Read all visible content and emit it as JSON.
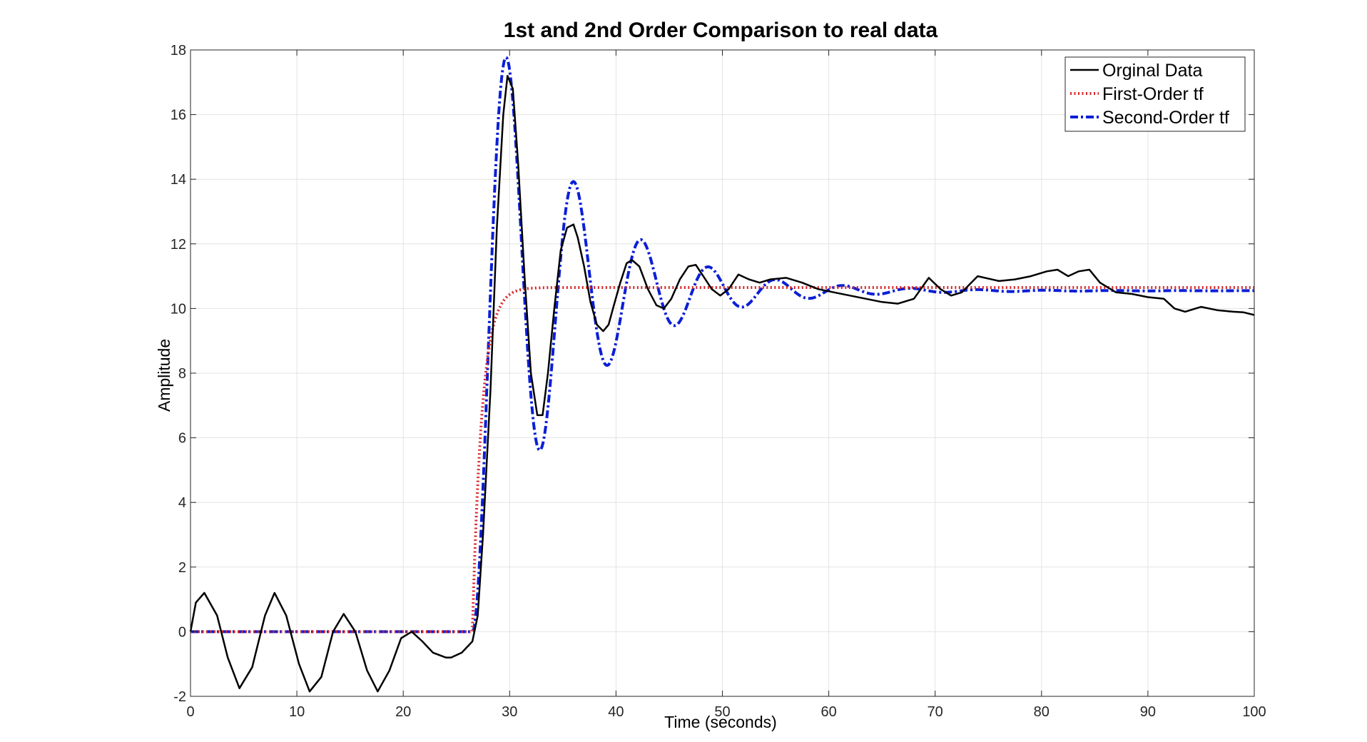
{
  "chart_data": {
    "type": "line",
    "title": "1st and 2nd Order Comparison to real data",
    "xlabel": "Time (seconds)",
    "ylabel": "Amplitude",
    "xlim": [
      0,
      100
    ],
    "ylim": [
      -2,
      18
    ],
    "xticks": [
      0,
      10,
      20,
      30,
      40,
      50,
      60,
      70,
      80,
      90,
      100
    ],
    "yticks": [
      -2,
      0,
      2,
      4,
      6,
      8,
      10,
      12,
      14,
      16,
      18
    ],
    "grid": true,
    "legend_position": "top-right",
    "series": [
      {
        "name": "Orginal Data",
        "color": "#000000",
        "style": "solid",
        "x": [
          0,
          0.5,
          1.3,
          2.5,
          3.5,
          4.6,
          5.8,
          7.0,
          7.9,
          9.0,
          10.2,
          11.2,
          12.3,
          13.4,
          14.4,
          15.5,
          16.6,
          17.6,
          18.7,
          19.8,
          20.8,
          21.8,
          22.8,
          24.0,
          24.5,
          25.5,
          26.5,
          27.0,
          27.5,
          28.2,
          28.8,
          29.4,
          29.8,
          30.3,
          30.8,
          31.4,
          32.0,
          32.6,
          33.1,
          33.6,
          34.2,
          34.8,
          35.4,
          36.0,
          36.4,
          37.0,
          37.6,
          38.2,
          38.8,
          39.3,
          39.8,
          40.4,
          41.0,
          41.5,
          42.2,
          43.0,
          43.8,
          44.5,
          45.2,
          46.0,
          46.8,
          47.5,
          48.2,
          49.0,
          49.8,
          50.6,
          51.5,
          52.5,
          53.5,
          54.5,
          56.0,
          57.5,
          59.0,
          60.5,
          62.0,
          63.5,
          65.0,
          66.5,
          68.0,
          69.4,
          70.5,
          71.5,
          72.5,
          74.0,
          76.0,
          77.5,
          79.0,
          80.5,
          81.5,
          82.5,
          83.5,
          84.5,
          85.5,
          87.0,
          88.5,
          90.0,
          91.5,
          92.5,
          93.5,
          95.0,
          96.5,
          98.0,
          99.0,
          100.0
        ],
        "y": [
          0,
          0.9,
          1.2,
          0.5,
          -0.8,
          -1.75,
          -1.1,
          0.5,
          1.2,
          0.5,
          -1.0,
          -1.85,
          -1.4,
          0.0,
          0.55,
          0.0,
          -1.2,
          -1.85,
          -1.2,
          -0.2,
          0.0,
          -0.3,
          -0.65,
          -0.8,
          -0.8,
          -0.65,
          -0.3,
          0.5,
          3.0,
          7.5,
          12.5,
          16.0,
          17.2,
          16.8,
          14.5,
          11.0,
          8.0,
          6.7,
          6.7,
          8.0,
          10.0,
          11.8,
          12.5,
          12.6,
          12.2,
          11.3,
          10.2,
          9.5,
          9.3,
          9.5,
          10.1,
          10.8,
          11.4,
          11.5,
          11.3,
          10.6,
          10.1,
          10.0,
          10.3,
          10.9,
          11.3,
          11.35,
          11.0,
          10.6,
          10.4,
          10.6,
          11.05,
          10.9,
          10.8,
          10.9,
          10.95,
          10.8,
          10.6,
          10.5,
          10.4,
          10.3,
          10.2,
          10.15,
          10.3,
          10.95,
          10.6,
          10.4,
          10.5,
          11.0,
          10.85,
          10.9,
          11.0,
          11.15,
          11.2,
          11.0,
          11.15,
          11.2,
          10.8,
          10.5,
          10.45,
          10.35,
          10.3,
          10.0,
          9.9,
          10.05,
          9.95,
          9.9,
          9.88,
          9.8
        ]
      },
      {
        "name": "First-Order tf",
        "color": "#d62728",
        "style": "dotted",
        "model": {
          "type": "first-order-step",
          "t0": 26.5,
          "K": 10.65,
          "tau": 0.9
        }
      },
      {
        "name": "Second-Order tf",
        "color": "#0a1fd6",
        "style": "dashdot",
        "model": {
          "type": "second-order-step",
          "t0": 26.5,
          "K": 10.55,
          "zeta": 0.12,
          "wn": 1.0
        }
      }
    ]
  }
}
